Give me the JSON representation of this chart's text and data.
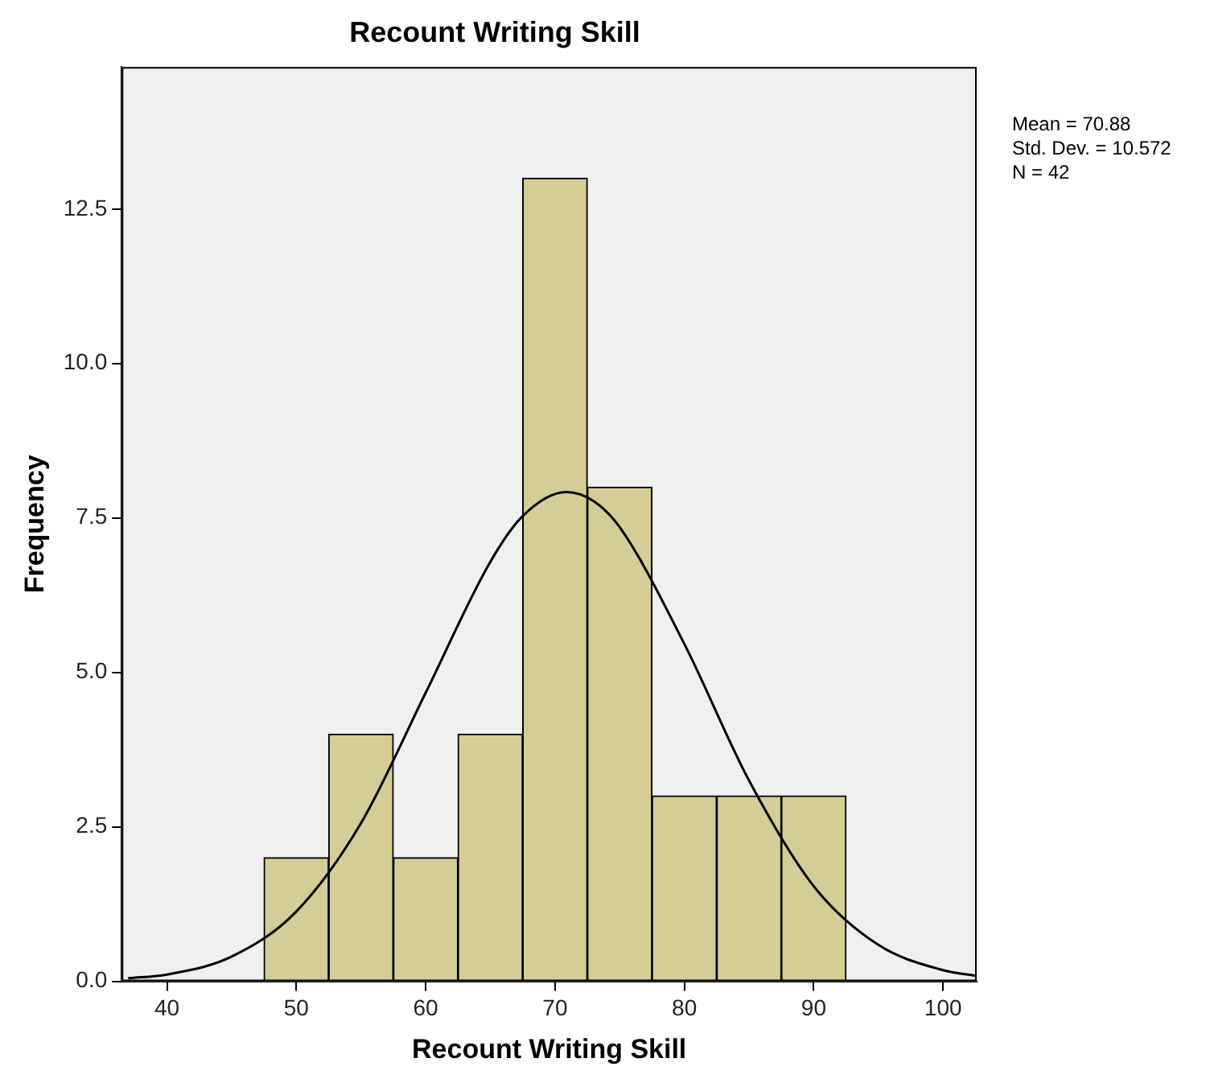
{
  "chart_data": {
    "type": "histogram",
    "title": "Recount Writing Skill",
    "xlabel": "Recount Writing Skill",
    "ylabel": "Frequency",
    "bins": [
      47.5,
      52.5,
      57.5,
      62.5,
      67.5,
      72.5,
      77.5,
      82.5,
      87.5,
      92.5
    ],
    "values": [
      2,
      4,
      2,
      4,
      13,
      8,
      3,
      3,
      3
    ],
    "color": "#d3ce97",
    "series": [
      {
        "type": "line",
        "color": "#000000",
        "x": [
          37,
          40,
          45,
          50,
          55,
          60,
          65,
          67.5,
          70.88,
          73,
          75,
          80,
          85,
          90,
          95,
          100,
          102.5
        ],
        "values": [
          0.05,
          0.11,
          0.4,
          1.13,
          2.56,
          4.67,
          6.79,
          7.53,
          7.92,
          7.77,
          7.35,
          5.46,
          3.25,
          1.54,
          0.59,
          0.18,
          0.09
        ]
      }
    ],
    "xlim": [
      36.5,
      102.6
    ],
    "xticks": [
      40,
      50,
      60,
      70,
      80,
      90,
      100
    ],
    "ylim": [
      0,
      14.8
    ],
    "yticks": [
      {
        "value": 0,
        "label": "0.0"
      },
      2.5,
      {
        "value": 5,
        "label": "5.0"
      },
      7.5,
      {
        "value": 10,
        "label": "10.0"
      },
      12.5
    ],
    "grid": false,
    "legend": false,
    "marker": "none",
    "annotations": [
      "Mean = 70.88",
      "Std. Dev. = 10.572",
      "N = 42"
    ]
  }
}
